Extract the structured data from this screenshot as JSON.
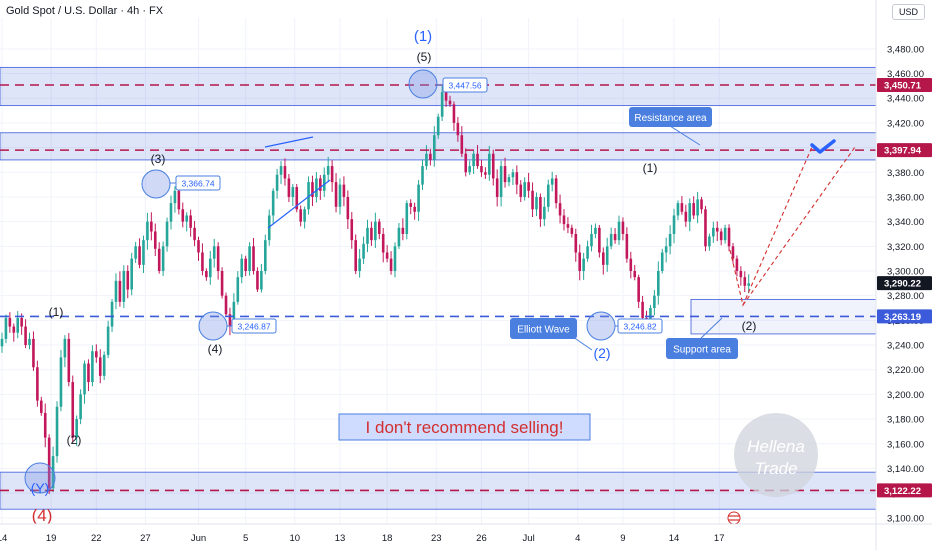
{
  "header": {
    "title": "Gold Spot / U.S. Dollar · 4h · FX",
    "currency_button": "USD"
  },
  "colors": {
    "bull": "#26a69a",
    "bear": "#c2185b",
    "zone_fill": "#3b5bdb",
    "dashed_red": "#b5174b",
    "accent_blue": "#2962ff",
    "label_blue": "#4a7fe0",
    "text_red": "#d32f2f"
  },
  "chart_data": {
    "type": "candlestick",
    "ylim": [
      3095,
      3505
    ],
    "y_ticks": [
      3100,
      3120,
      3140,
      3160,
      3180,
      3200,
      3220,
      3240,
      3260,
      3280,
      3300,
      3320,
      3340,
      3360,
      3380,
      3400,
      3420,
      3440,
      3460,
      3480
    ],
    "y_tick_labels": [
      "3,100.00",
      "3,120.00",
      "3,140.00",
      "3,160.00",
      "3,180.00",
      "3,200.00",
      "3,220.00",
      "3,240.00",
      "3,260.00",
      "3,280.00",
      "3,300.00",
      "3,320.00",
      "3,340.00",
      "3,360.00",
      "3,380.00",
      "3,400.00",
      "3,420.00",
      "3,440.00",
      "3,460.00",
      "3,480.00"
    ],
    "x_labels": [
      "14",
      "19",
      "22",
      "27",
      "Jun",
      "5",
      "10",
      "13",
      "18",
      "23",
      "26",
      "Jul",
      "4",
      "9",
      "14",
      "17"
    ],
    "x_label_index": [
      0,
      12.5,
      24,
      36.5,
      50,
      62,
      74.5,
      86,
      98,
      110.5,
      122,
      134,
      146.5,
      158,
      171,
      182.5
    ],
    "price_labels": [
      {
        "value": 3450.71,
        "text": "3,450.71",
        "color": "#b5174b"
      },
      {
        "value": 3397.94,
        "text": "3,397.94",
        "color": "#b5174b"
      },
      {
        "value": 3290.22,
        "text": "3,290.22",
        "color": "#131722"
      },
      {
        "value": 3263.19,
        "text": "3,263.19",
        "color": "#3b5bdb"
      },
      {
        "value": 3122.22,
        "text": "3,122.22",
        "color": "#b5174b"
      }
    ],
    "zones": [
      {
        "name": "top-resistance-zone",
        "from": 3434,
        "to": 3465
      },
      {
        "name": "resistance-zone",
        "from": 3390,
        "to": 3412
      },
      {
        "name": "bottom-support-zone",
        "from": 3107,
        "to": 3137
      }
    ],
    "support_box": {
      "from": 3249,
      "to": 3277,
      "x_from": 154,
      "x_to": 999
    },
    "dashed_levels": [
      {
        "value": 3450.71,
        "color": "#b5174b"
      },
      {
        "value": 3397.94,
        "color": "#b5174b"
      },
      {
        "value": 3263.19,
        "color": "#3b5bdb"
      },
      {
        "value": 3122.22,
        "color": "#b5174b"
      }
    ],
    "closes": [
      3245,
      3262,
      3255,
      3250,
      3262,
      3255,
      3240,
      3245,
      3222,
      3195,
      3185,
      3165,
      3124,
      3150,
      3190,
      3230,
      3245,
      3210,
      3165,
      3180,
      3200,
      3225,
      3210,
      3235,
      3230,
      3215,
      3232,
      3255,
      3275,
      3292,
      3275,
      3300,
      3285,
      3310,
      3320,
      3305,
      3325,
      3340,
      3332,
      3318,
      3300,
      3320,
      3340,
      3355,
      3365,
      3350,
      3340,
      3345,
      3335,
      3325,
      3315,
      3300,
      3295,
      3310,
      3320,
      3300,
      3280,
      3265,
      3255,
      3275,
      3295,
      3310,
      3300,
      3320,
      3300,
      3285,
      3300,
      3325,
      3345,
      3365,
      3378,
      3385,
      3375,
      3360,
      3368,
      3350,
      3340,
      3350,
      3372,
      3360,
      3375,
      3365,
      3378,
      3385,
      3372,
      3352,
      3370,
      3360,
      3342,
      3325,
      3300,
      3310,
      3322,
      3335,
      3325,
      3340,
      3330,
      3315,
      3310,
      3300,
      3320,
      3335,
      3330,
      3355,
      3352,
      3348,
      3370,
      3385,
      3395,
      3390,
      3410,
      3425,
      3445,
      3438,
      3435,
      3420,
      3410,
      3395,
      3380,
      3385,
      3395,
      3385,
      3380,
      3378,
      3395,
      3375,
      3360,
      3385,
      3372,
      3376,
      3380,
      3370,
      3360,
      3372,
      3365,
      3350,
      3360,
      3342,
      3352,
      3370,
      3375,
      3355,
      3345,
      3338,
      3335,
      3330,
      3315,
      3300,
      3310,
      3320,
      3330,
      3335,
      3315,
      3305,
      3320,
      3330,
      3325,
      3340,
      3330,
      3310,
      3300,
      3295,
      3275,
      3262,
      3255,
      3270,
      3280,
      3300,
      3315,
      3320,
      3330,
      3345,
      3355,
      3348,
      3340,
      3355,
      3345,
      3358,
      3350,
      3320,
      3328,
      3335,
      3332,
      3325,
      3335,
      3320,
      3310,
      3300,
      3295,
      3288,
      3290
    ],
    "annotations": {
      "wave_labels": [
        {
          "name": "wave-4-major-label",
          "text": "(4)"
        },
        {
          "name": "wave-1-minor-label",
          "text": "(1)"
        },
        {
          "name": "wave-2-minor-label",
          "text": "(2)"
        },
        {
          "name": "wave-3-label",
          "text": "(3)"
        },
        {
          "name": "wave-4-label",
          "text": "(4)"
        },
        {
          "name": "wave-1-major-label",
          "text": "(1)"
        },
        {
          "name": "wave-5-label",
          "text": "(5)"
        },
        {
          "name": "wave-1-jul-label",
          "text": "(1)"
        },
        {
          "name": "wave-2-circled-label",
          "text": "(2)"
        },
        {
          "name": "wave-2-target-label",
          "text": "(2)"
        },
        {
          "name": "wave-y-circled-label",
          "text": "(Y)"
        }
      ],
      "price_tags": [
        "3,447.56",
        "3,366.74",
        "3,246.87",
        "3,246.82"
      ],
      "callouts": {
        "resistance": "Resistance area",
        "support": "Support area",
        "elliott": "Elliott Wave"
      },
      "banner_text": "I don't recommend selling!",
      "watermark": [
        "Hellena",
        "Trade"
      ]
    }
  }
}
